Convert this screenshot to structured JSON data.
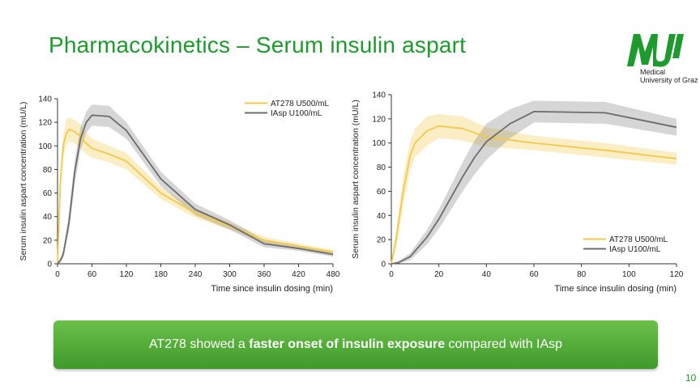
{
  "slide": {
    "title": "Pharmacokinetics – Serum insulin aspart",
    "page_number": "10"
  },
  "logo": {
    "line1": "Medical",
    "line2": "University of Graz",
    "color": "#1f9a2e"
  },
  "banner": {
    "part1": "AT278 showed a ",
    "bold": "faster onset of insulin exposure",
    "part2": " compared with IAsp",
    "color": "#4faa33"
  },
  "chart_data": [
    {
      "type": "line",
      "xlabel": "Time since insulin dosing (min)",
      "ylabel": "Serum insulin aspart concentration (mU/L)",
      "xlim": [
        0,
        480
      ],
      "ylim": [
        0,
        140
      ],
      "xticks": [
        0,
        60,
        120,
        180,
        240,
        300,
        360,
        420,
        480
      ],
      "yticks": [
        0,
        20,
        40,
        60,
        80,
        100,
        120,
        140
      ],
      "grid": false,
      "legend_position": "top-right",
      "series": [
        {
          "name": "AT278 U500/mL",
          "color": "#f2c94c",
          "x": [
            0,
            5,
            10,
            15,
            20,
            30,
            40,
            50,
            60,
            90,
            120,
            180,
            240,
            300,
            360,
            420,
            480
          ],
          "y": [
            0,
            70,
            100,
            110,
            114,
            112,
            108,
            102,
            98,
            93,
            87,
            60,
            43,
            32,
            20,
            15,
            10
          ],
          "band": [
            [
              0,
              0
            ],
            [
              62,
              78
            ],
            [
              90,
              110
            ],
            [
              100,
              122
            ],
            [
              104,
              124
            ],
            [
              102,
              122
            ],
            [
              98,
              118
            ],
            [
              93,
              111
            ],
            [
              90,
              106
            ],
            [
              86,
              100
            ],
            [
              80,
              94
            ],
            [
              55,
              65
            ],
            [
              39,
              47
            ],
            [
              29,
              35
            ],
            [
              18,
              23
            ],
            [
              13,
              17
            ],
            [
              8,
              12
            ]
          ]
        },
        {
          "name": "IAsp U100/mL",
          "color": "#6c6c6c",
          "x": [
            0,
            5,
            10,
            20,
            30,
            40,
            50,
            60,
            90,
            120,
            180,
            240,
            300,
            360,
            420,
            480
          ],
          "y": [
            0,
            3,
            8,
            35,
            78,
            106,
            120,
            126,
            125,
            113,
            72,
            46,
            33,
            17,
            13,
            8
          ],
          "band": [
            [
              0,
              0
            ],
            [
              1,
              5
            ],
            [
              5,
              12
            ],
            [
              28,
              43
            ],
            [
              68,
              88
            ],
            [
              96,
              116
            ],
            [
              111,
              129
            ],
            [
              117,
              135
            ],
            [
              116,
              134
            ],
            [
              106,
              120
            ],
            [
              66,
              78
            ],
            [
              41,
              51
            ],
            [
              29,
              37
            ],
            [
              14,
              20
            ],
            [
              11,
              15
            ],
            [
              6,
              10
            ]
          ]
        }
      ]
    },
    {
      "type": "line",
      "xlabel": "Time since insulin dosing (min)",
      "ylabel": "Serum insulin aspart concentration (mU/L)",
      "xlim": [
        0,
        120
      ],
      "ylim": [
        0,
        140
      ],
      "xticks": [
        0,
        20,
        40,
        60,
        80,
        100,
        120
      ],
      "yticks": [
        0,
        20,
        40,
        60,
        80,
        100,
        120,
        140
      ],
      "grid": false,
      "legend_position": "bottom-right",
      "series": [
        {
          "name": "AT278 U500/mL",
          "color": "#f2c94c",
          "x": [
            0,
            2,
            5,
            8,
            10,
            15,
            20,
            30,
            40,
            60,
            90,
            120
          ],
          "y": [
            0,
            20,
            60,
            90,
            100,
            110,
            114,
            112,
            105,
            100,
            94,
            87
          ],
          "band": [
            [
              0,
              0
            ],
            [
              12,
              28
            ],
            [
              48,
              72
            ],
            [
              78,
              102
            ],
            [
              88,
              112
            ],
            [
              98,
              122
            ],
            [
              104,
              124
            ],
            [
              102,
              122
            ],
            [
              97,
              113
            ],
            [
              94,
              106
            ],
            [
              88,
              100
            ],
            [
              82,
              92
            ]
          ]
        },
        {
          "name": "IAsp   U100/mL",
          "color": "#6c6c6c",
          "x": [
            0,
            3,
            8,
            15,
            20,
            30,
            35,
            40,
            50,
            60,
            90,
            120
          ],
          "y": [
            0,
            1,
            6,
            22,
            37,
            72,
            88,
            101,
            116,
            126,
            125,
            113
          ],
          "band": [
            [
              0,
              0
            ],
            [
              0,
              2
            ],
            [
              3,
              9
            ],
            [
              16,
              28
            ],
            [
              29,
              45
            ],
            [
              60,
              84
            ],
            [
              74,
              102
            ],
            [
              86,
              116
            ],
            [
              104,
              128
            ],
            [
              117,
              135
            ],
            [
              116,
              134
            ],
            [
              106,
              120
            ]
          ]
        }
      ]
    }
  ]
}
